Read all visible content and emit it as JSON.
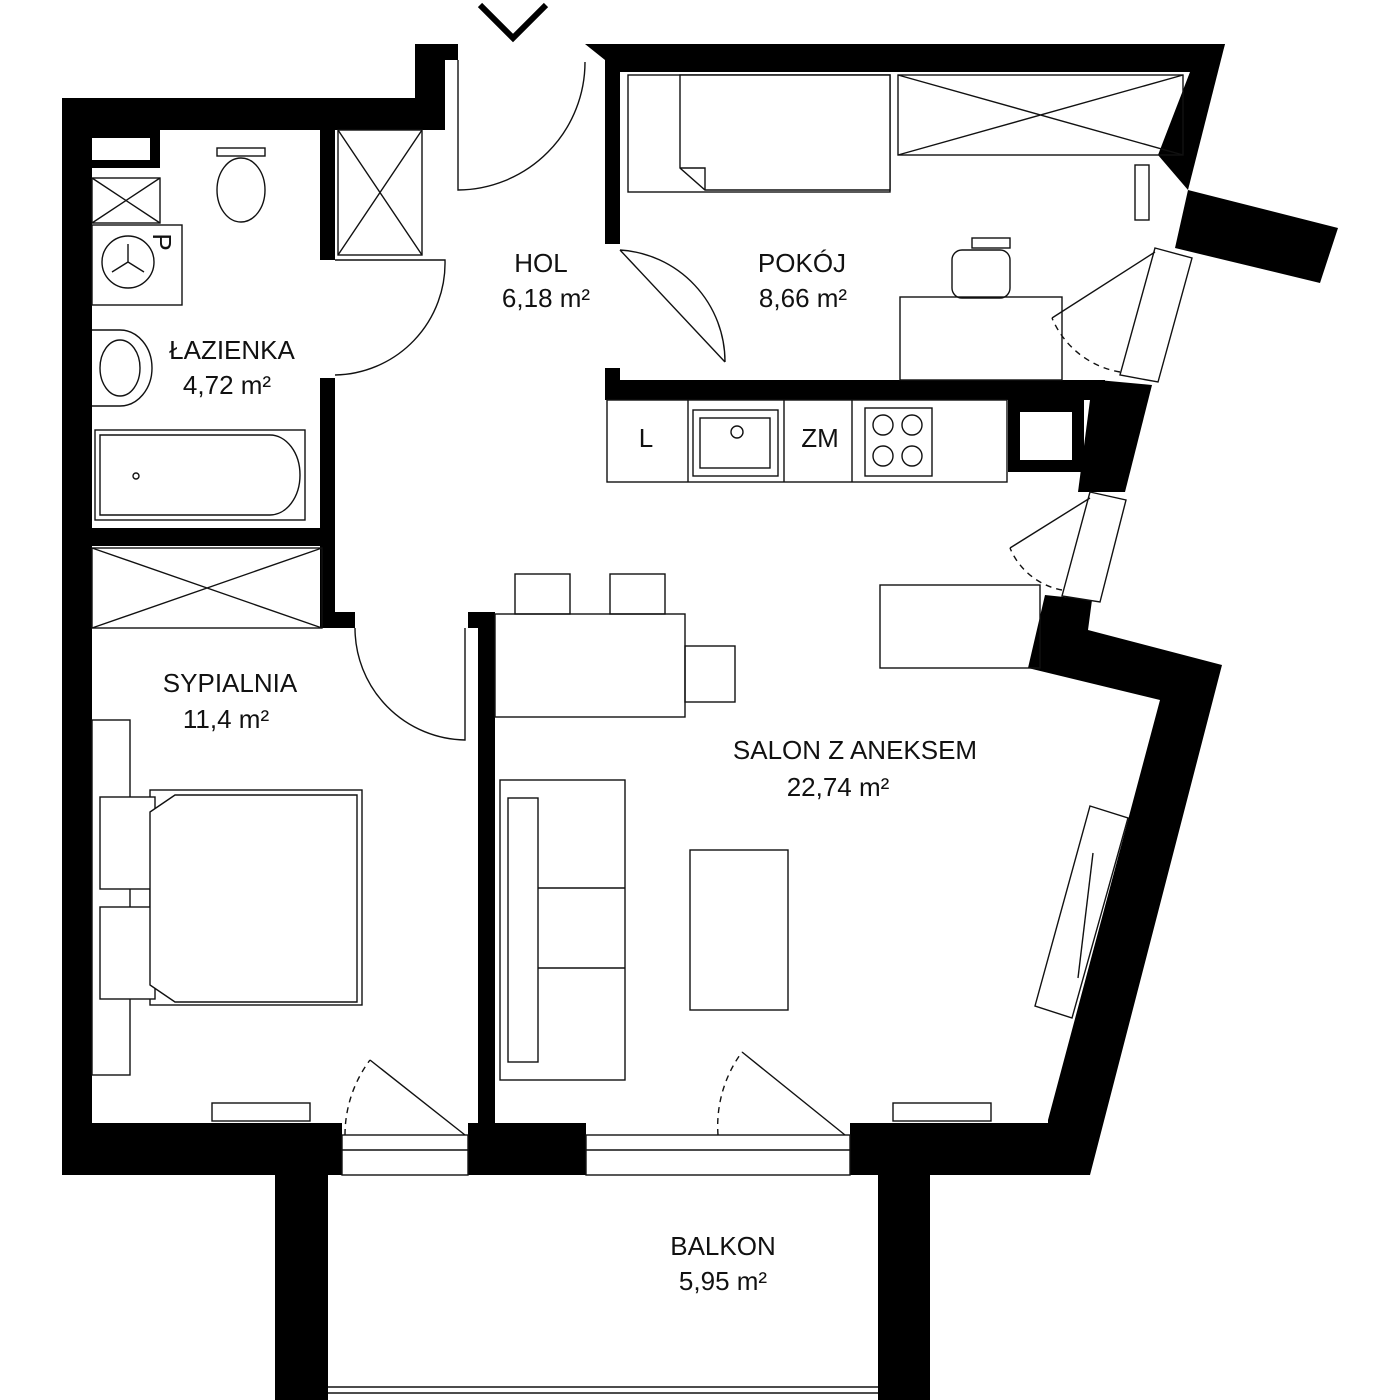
{
  "rooms": [
    {
      "name": "HOL",
      "area": "6,18 m²"
    },
    {
      "name": "POKÓJ",
      "area": "8,66 m²"
    },
    {
      "name": "ŁAZIENKA",
      "area": "4,72 m²"
    },
    {
      "name": "SYPIALNIA",
      "area": "11,4 m²"
    },
    {
      "name": "SALON Z ANEKSEM",
      "area": "22,74 m²"
    },
    {
      "name": "BALKON",
      "area": "5,95 m²"
    }
  ],
  "fixtures": {
    "fridge": "L",
    "dishwasher": "ZM",
    "washer": "P"
  }
}
